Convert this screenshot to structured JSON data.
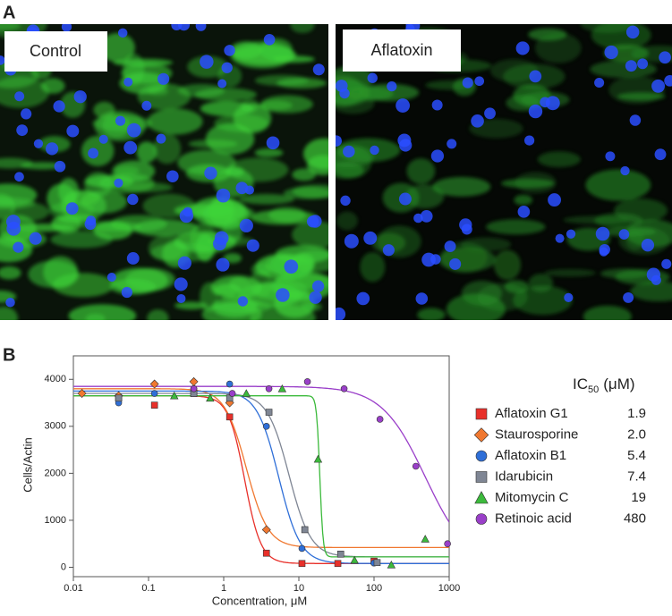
{
  "panel_a": {
    "label": "A",
    "images": [
      {
        "label": "Control"
      },
      {
        "label": "Aflatoxin"
      }
    ]
  },
  "panel_b": {
    "label": "B"
  },
  "chart_data": {
    "type": "scatter",
    "x_label": "Concentration, μM",
    "y_label": "Cells/Actin",
    "log_x": true,
    "xlim": [
      0.01,
      1000
    ],
    "xticks": [
      0.01,
      0.1,
      1,
      10,
      100,
      1000
    ],
    "ylim": [
      -200,
      4500
    ],
    "yticks": [
      0,
      1000,
      2000,
      3000,
      4000
    ],
    "legend_header": {
      "main": "IC",
      "sub": "50",
      "unit": "(μM)"
    },
    "series": [
      {
        "name": "Aflatoxin G1",
        "ic50_label": "1.9",
        "color": "#e8302a",
        "marker": "square",
        "x": [
          0.04,
          0.12,
          0.4,
          1.2,
          3.7,
          11,
          33,
          100
        ],
        "values": [
          3600,
          3450,
          3700,
          3200,
          300,
          80,
          80,
          130
        ],
        "fit": {
          "top": 3650,
          "bottom": 80,
          "ic50": 1.9,
          "hill": 4
        }
      },
      {
        "name": "Staurosporine",
        "ic50_label": "2.0",
        "color": "#f07830",
        "marker": "diamond",
        "x": [
          0.013,
          0.04,
          0.12,
          0.4,
          1.2,
          3.7
        ],
        "values": [
          3700,
          3650,
          3900,
          3950,
          3500,
          800
        ],
        "fit": {
          "top": 3800,
          "bottom": 420,
          "ic50": 2.0,
          "hill": 3
        }
      },
      {
        "name": "Aflatoxin B1",
        "ic50_label": "5.4",
        "color": "#2f6fd8",
        "marker": "circle",
        "x": [
          0.04,
          0.12,
          0.4,
          1.2,
          3.7,
          11,
          100
        ],
        "values": [
          3500,
          3700,
          3800,
          3900,
          3000,
          400,
          90
        ],
        "fit": {
          "top": 3750,
          "bottom": 80,
          "ic50": 5.4,
          "hill": 3
        }
      },
      {
        "name": "Idarubicin",
        "ic50_label": "7.4",
        "color": "#7f8694",
        "marker": "square",
        "x": [
          0.04,
          0.4,
          1.2,
          4,
          12,
          36,
          110
        ],
        "values": [
          3600,
          3700,
          3600,
          3300,
          800,
          280,
          100
        ],
        "fit": {
          "top": 3700,
          "bottom": 220,
          "ic50": 7.4,
          "hill": 3
        }
      },
      {
        "name": "Mitomycin C",
        "ic50_label": "19",
        "color": "#3cba3c",
        "marker": "triangle",
        "x": [
          0.22,
          0.66,
          2,
          6,
          18,
          55,
          170,
          480
        ],
        "values": [
          3650,
          3600,
          3700,
          3800,
          2300,
          150,
          50,
          600
        ],
        "fit": {
          "top": 3650,
          "bottom": 220,
          "ic50": 19,
          "hill": 20
        }
      },
      {
        "name": "Retinoic acid",
        "ic50_label": "480",
        "color": "#9a3fc9",
        "marker": "circle",
        "x": [
          0.4,
          1.3,
          4,
          13,
          40,
          120,
          360,
          950
        ],
        "values": [
          3800,
          3700,
          3800,
          3950,
          3800,
          3150,
          2150,
          500
        ],
        "fit": {
          "top": 3850,
          "bottom": 0,
          "ic50": 480,
          "hill": 1.5
        }
      }
    ]
  }
}
